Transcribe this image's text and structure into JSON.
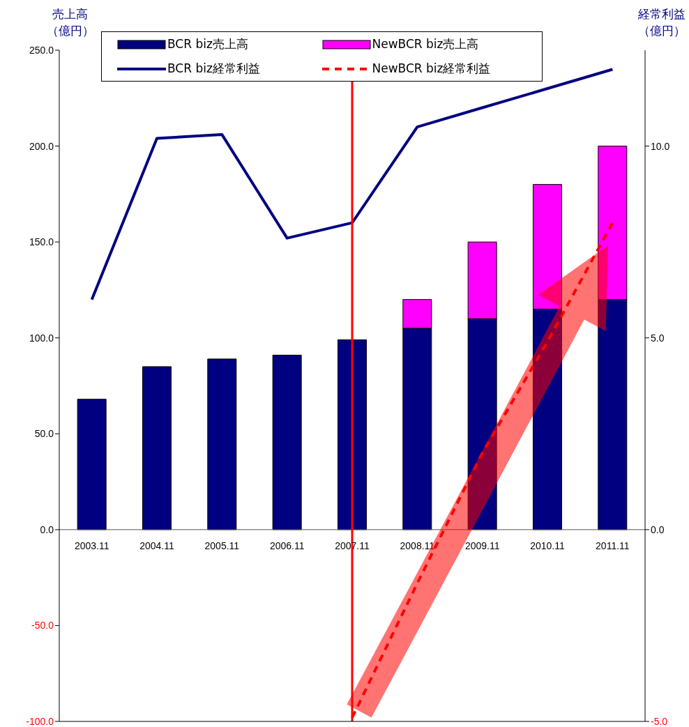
{
  "chart_data": {
    "type": "bar",
    "stacked": true,
    "ylabel": "売上高（億円）",
    "y2label": "経常利益（億円）",
    "categories": [
      "2003.11",
      "2004.11",
      "2005.11",
      "2006.11",
      "2007.11",
      "2008.11",
      "2009.11",
      "2010.11",
      "2011.11"
    ],
    "series": [
      {
        "name": "BCR biz売上高",
        "color": "#000080",
        "values": [
          68,
          85,
          89,
          91,
          99,
          105,
          110,
          115,
          120
        ]
      },
      {
        "name": "NewBCR biz売上高",
        "color": "#ff00ff",
        "values": [
          null,
          null,
          null,
          null,
          null,
          15,
          40,
          65,
          80
        ]
      },
      {
        "name": "BCR biz経常利益",
        "type": "line",
        "axis": "y2",
        "color": "#000080",
        "line_style": "solid",
        "values": [
          6.0,
          10.2,
          10.3,
          7.6,
          8.0,
          10.5,
          11.0,
          11.5,
          12.0
        ]
      },
      {
        "name": "NewBCR biz経常利益",
        "type": "line",
        "axis": "y2",
        "color": "#ff0000",
        "line_style": "dashed",
        "values": [
          null,
          null,
          null,
          null,
          -4.9,
          -1.4,
          2.0,
          4.9,
          8.0
        ]
      }
    ],
    "ylim": [
      -100,
      250
    ],
    "yticks": [
      {
        "value": -100,
        "label": "-100.0"
      },
      {
        "value": -50,
        "label": "-50.0"
      },
      {
        "value": 0,
        "label": "0.0"
      },
      {
        "value": 50,
        "label": "50.0"
      },
      {
        "value": 100,
        "label": "100.0"
      },
      {
        "value": 150,
        "label": "150.0"
      },
      {
        "value": 200,
        "label": "200.0"
      },
      {
        "value": 250,
        "label": "250.0"
      }
    ],
    "y2lim": [
      -5,
      12.5
    ],
    "y2ticks": [
      {
        "value": -5,
        "label": "-5.0"
      },
      {
        "value": 0,
        "label": "0.0"
      },
      {
        "value": 5,
        "label": "5.0"
      },
      {
        "value": 10,
        "label": "10.0"
      }
    ],
    "ref_lines": [
      {
        "axis": "x",
        "value": "2007.11",
        "color": "#ff0000"
      }
    ],
    "grid": false,
    "legend": "top",
    "marker": "none"
  }
}
